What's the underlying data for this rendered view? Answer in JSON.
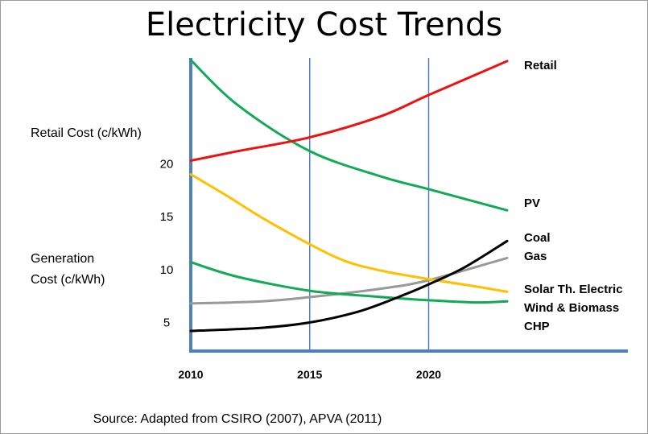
{
  "chart_data": {
    "type": "line",
    "title": "Electricity Cost Trends",
    "ylabel_retail": "Retail Cost (c/kWh)",
    "ylabel_generation_line1": "Generation",
    "ylabel_generation_line2": "Cost (c/kWh)",
    "source": "Source: Adapted from CSIRO (2007), APVA (2011)",
    "xlim": [
      2010,
      2024
    ],
    "ylim": [
      2.3,
      30
    ],
    "x_ticks": [
      {
        "label": "2010",
        "value": 2010
      },
      {
        "label": "2015",
        "value": 2015
      },
      {
        "label": "2020",
        "value": 2020
      }
    ],
    "y_ticks": [
      {
        "label": "20",
        "value": 20
      },
      {
        "label": "15",
        "value": 15
      },
      {
        "label": "10",
        "value": 10
      },
      {
        "label": "5",
        "value": 5
      }
    ],
    "vertical_gridlines": [
      2015,
      2020
    ],
    "series": [
      {
        "name": "Retail",
        "color": "#ee1111",
        "points": [
          [
            2010,
            20.3
          ],
          [
            2012,
            21.2
          ],
          [
            2015,
            22.5
          ],
          [
            2018,
            24.5
          ],
          [
            2020,
            26.5
          ],
          [
            2023.3,
            29.7
          ]
        ]
      },
      {
        "name": "PV",
        "color": "#11aa55",
        "points": [
          [
            2010,
            29.8
          ],
          [
            2012,
            25.5
          ],
          [
            2015,
            21.2
          ],
          [
            2018,
            18.8
          ],
          [
            2020,
            17.6
          ],
          [
            2023.3,
            15.6
          ]
        ]
      },
      {
        "name": "Coal",
        "color": "#000000",
        "points": [
          [
            2010,
            4.2
          ],
          [
            2013,
            4.5
          ],
          [
            2015,
            5.0
          ],
          [
            2017,
            6.0
          ],
          [
            2018.5,
            7.2
          ],
          [
            2020,
            8.6
          ],
          [
            2021.5,
            10.2
          ],
          [
            2023.3,
            12.7
          ]
        ]
      },
      {
        "name": "Gas",
        "color": "#999999",
        "points": [
          [
            2010,
            6.8
          ],
          [
            2013,
            7.0
          ],
          [
            2015,
            7.4
          ],
          [
            2018,
            8.2
          ],
          [
            2020,
            9.0
          ],
          [
            2023.3,
            11.1
          ]
        ]
      },
      {
        "name": "Solar Th. Electric",
        "color": "#ffc000",
        "points": [
          [
            2010,
            19.0
          ],
          [
            2011.5,
            17.0
          ],
          [
            2013,
            14.9
          ],
          [
            2015,
            12.4
          ],
          [
            2016.5,
            10.8
          ],
          [
            2018,
            9.9
          ],
          [
            2020,
            9.1
          ],
          [
            2022,
            8.4
          ],
          [
            2023.3,
            7.9
          ]
        ]
      },
      {
        "name": "Wind & Biomass",
        "color": "#11aa55",
        "points": [
          [
            2010,
            10.7
          ],
          [
            2012,
            9.3
          ],
          [
            2015,
            8.0
          ],
          [
            2017.5,
            7.5
          ],
          [
            2020,
            7.1
          ],
          [
            2022,
            6.9
          ],
          [
            2023.3,
            7.0
          ]
        ]
      },
      {
        "name": "CHP",
        "color": "#11aa55",
        "points": []
      }
    ]
  }
}
